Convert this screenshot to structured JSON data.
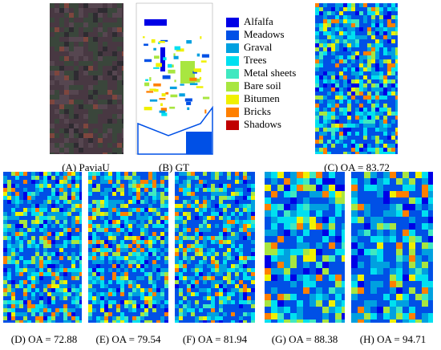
{
  "panels": [
    {
      "caption": "(A) PaviaU"
    },
    {
      "caption": "(B) GT"
    },
    {
      "caption": "(C) OA = 83.72"
    },
    {
      "caption": "(D) OA = 72.88"
    },
    {
      "caption": "(E) OA = 79.54"
    },
    {
      "caption": "(F) OA = 81.94"
    },
    {
      "caption": "(G) OA = 88.38"
    },
    {
      "caption": "(H) OA = 94.71"
    }
  ],
  "legend": [
    {
      "label": "Alfalfa",
      "color": "#0000e6"
    },
    {
      "label": "Meadows",
      "color": "#0050e6"
    },
    {
      "label": "Graval",
      "color": "#00a0e0"
    },
    {
      "label": "Trees",
      "color": "#00e0f0"
    },
    {
      "label": "Metal sheets",
      "color": "#40e8c0"
    },
    {
      "label": "Bare soil",
      "color": "#a8e640"
    },
    {
      "label": "Bitumen",
      "color": "#f0f000"
    },
    {
      "label": "Bricks",
      "color": "#ff8000"
    },
    {
      "label": "Shadows",
      "color": "#c00000"
    }
  ]
}
